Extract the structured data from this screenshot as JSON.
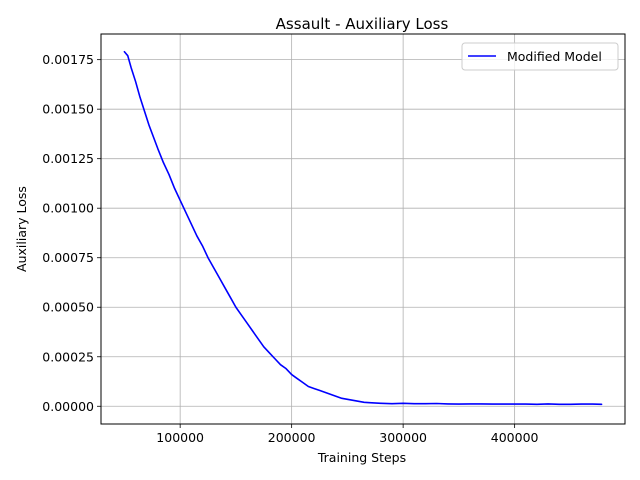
{
  "chart_data": {
    "type": "line",
    "title": "Assault - Auxiliary Loss",
    "xlabel": "Training Steps",
    "ylabel": "Auxiliary Loss",
    "xlim": [
      29000,
      499000
    ],
    "ylim": [
      -8.95e-05,
      0.0018795
    ],
    "xticks": [
      100000,
      200000,
      300000,
      400000
    ],
    "xtick_labels": [
      "100000",
      "200000",
      "300000",
      "400000"
    ],
    "yticks": [
      0,
      0.00025,
      0.0005,
      0.00075,
      0.001,
      0.00125,
      0.0015,
      0.00175
    ],
    "ytick_labels": [
      "0.00000",
      "0.00025",
      "0.00050",
      "0.00075",
      "0.00100",
      "0.00125",
      "0.00150",
      "0.00175"
    ],
    "grid": true,
    "legend": {
      "placement": "top-right"
    },
    "series": [
      {
        "name": "Modified Model",
        "color": "#0000ff",
        "x": [
          50000,
          53000,
          56000,
          60000,
          64000,
          68000,
          72000,
          76000,
          80000,
          85000,
          90000,
          95000,
          100000,
          105000,
          110000,
          115000,
          120000,
          125000,
          130000,
          135000,
          140000,
          145000,
          150000,
          155000,
          160000,
          165000,
          170000,
          175000,
          180000,
          185000,
          190000,
          195000,
          200000,
          205000,
          210000,
          215000,
          220000,
          225000,
          230000,
          235000,
          240000,
          245000,
          250000,
          255000,
          260000,
          265000,
          270000,
          280000,
          290000,
          300000,
          310000,
          320000,
          330000,
          340000,
          350000,
          360000,
          370000,
          380000,
          390000,
          400000,
          410000,
          420000,
          430000,
          440000,
          450000,
          460000,
          470000,
          478000
        ],
        "y": [
          0.00179,
          0.00177,
          0.00171,
          0.00164,
          0.00156,
          0.00149,
          0.00142,
          0.00136,
          0.0013,
          0.00123,
          0.00117,
          0.0011,
          0.00104,
          0.00098,
          0.00092,
          0.00086,
          0.00081,
          0.00075,
          0.0007,
          0.00065,
          0.0006,
          0.00055,
          0.0005,
          0.00046,
          0.00042,
          0.00038,
          0.00034,
          0.0003,
          0.00027,
          0.00024,
          0.00021,
          0.00019,
          0.00016,
          0.00014,
          0.00012,
          0.0001,
          9e-05,
          8e-05,
          7e-05,
          6e-05,
          5e-05,
          4e-05,
          3.5e-05,
          3e-05,
          2.5e-05,
          2e-05,
          1.8e-05,
          1.5e-05,
          1.3e-05,
          1.5e-05,
          1.3e-05,
          1.3e-05,
          1.4e-05,
          1.2e-05,
          1.1e-05,
          1.2e-05,
          1.2e-05,
          1.1e-05,
          1.1e-05,
          1.1e-05,
          1.1e-05,
          1e-05,
          1.2e-05,
          1e-05,
          1e-05,
          1.1e-05,
          1.1e-05,
          1e-05
        ]
      }
    ]
  }
}
